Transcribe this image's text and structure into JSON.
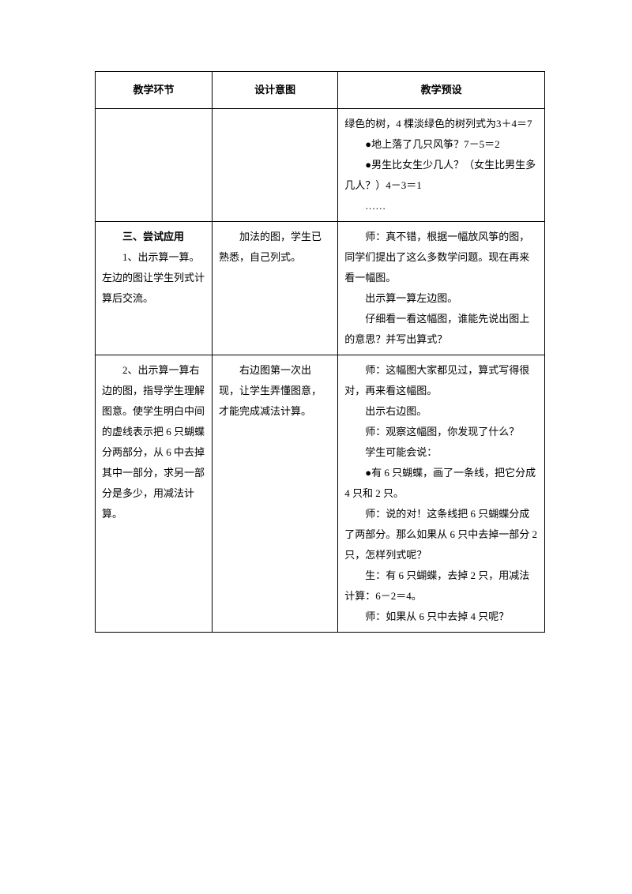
{
  "headers": {
    "col1": "教学环节",
    "col2": "设计意图",
    "col3": "教学预设"
  },
  "row1": {
    "c3_l1": "绿色的树，4 棵淡绿色的树列式为3＋4＝7",
    "c3_l2": "●地上落了几只风筝？7－5＝2",
    "c3_l3": "●男生比女生少几人？（女生比男生多几人？）4－3＝1",
    "c3_l4": "……"
  },
  "row2": {
    "c1_title": "三、尝试应用",
    "c1_l1": "1、出示算一算。左边的图让学生列式计算后交流。",
    "c2_l1": "加法的图，学生已熟悉，自己列式。",
    "c3_l1": "师：真不错，根据一幅放风筝的图，同学们提出了这么多数学问题。现在再来看一幅图。",
    "c3_l2": "出示算一算左边图。",
    "c3_l3": "仔细看一看这幅图，谁能先说出图上的意思？并写出算式？"
  },
  "row3": {
    "c1_l1": "2、出示算一算右边的图，指导学生理解图意。使学生明白中间的虚线表示把 6 只蝴蝶分两部分，从 6 中去掉其中一部分，求另一部分是多少，用减法计算。",
    "c2_l1": "右边图第一次出现，让学生弄懂图意，才能完成减法计算。",
    "c3_l1": "师：这幅图大家都见过，算式写得很对，再来看这幅图。",
    "c3_l2": "出示右边图。",
    "c3_l3": "师：观察这幅图，你发现了什么？",
    "c3_l4": "学生可能会说：",
    "c3_l5": "●有 6 只蝴蝶，画了一条线，把它分成 4 只和 2 只。",
    "c3_l6": "师：说的对！这条线把 6 只蝴蝶分成了两部分。那么如果从 6 只中去掉一部分 2 只，怎样列式呢？",
    "c3_l7": "生：有 6 只蝴蝶，去掉 2 只，用减法计算：6－2＝4。",
    "c3_l8": "师：如果从 6 只中去掉 4 只呢？"
  }
}
